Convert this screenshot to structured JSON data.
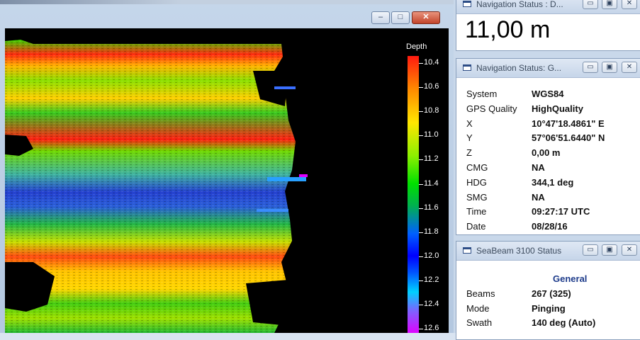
{
  "depth_window": {
    "legend": {
      "title": "Depth",
      "labels": [
        "10.4",
        "10.6",
        "10.8",
        "11.0",
        "11.2",
        "11.4",
        "11.6",
        "11.8",
        "12.0",
        "12.2",
        "12.4",
        "12.6"
      ]
    },
    "buttons": {
      "minimize": "–",
      "maximize": "□",
      "close": "✕"
    }
  },
  "panel_depth": {
    "title": "Navigation Status : D...",
    "value": "11,00 m"
  },
  "panel_gps": {
    "title": "Navigation Status: G...",
    "rows": [
      {
        "key": "System",
        "value": "WGS84"
      },
      {
        "key": "GPS Quality",
        "value": "HighQuality"
      },
      {
        "key": "X",
        "value": "10°47'18.4861\" E"
      },
      {
        "key": "Y",
        "value": "57°06'51.6440\" N"
      },
      {
        "key": "Z",
        "value": "0,00 m"
      },
      {
        "key": "CMG",
        "value": "NA"
      },
      {
        "key": "HDG",
        "value": "344,1 deg"
      },
      {
        "key": "SMG",
        "value": "NA"
      },
      {
        "key": "Time",
        "value": "09:27:17 UTC"
      },
      {
        "key": "Date",
        "value": "08/28/16"
      }
    ]
  },
  "panel_seabeam": {
    "title": "SeaBeam 3100 Status",
    "section": "General",
    "rows": [
      {
        "key": "Beams",
        "value": "267 (325)"
      },
      {
        "key": "Mode",
        "value": "Pinging"
      },
      {
        "key": "Swath",
        "value": "140 deg (Auto)"
      }
    ]
  },
  "panel_buttons": {
    "minimize": "▭",
    "maximize": "▣",
    "close": "✕"
  },
  "colors": {
    "background": "#000000",
    "header_blue": "#1c3a8a",
    "close_red": "#c2442a"
  }
}
